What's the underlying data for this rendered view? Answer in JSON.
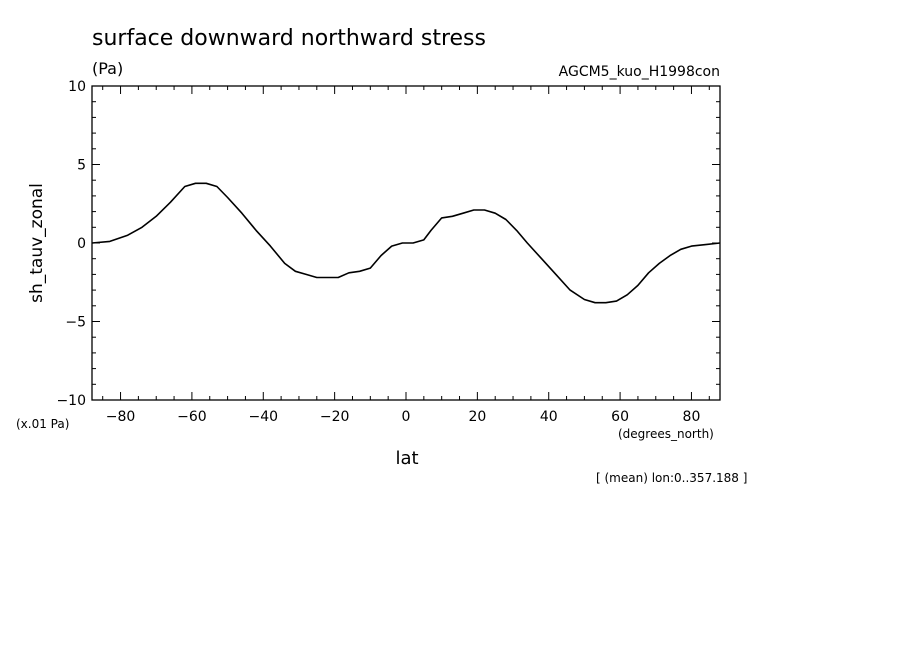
{
  "chart_data": {
    "type": "line",
    "title": "surface downward northward stress",
    "units": "(Pa)",
    "run_label": "AGCM5_kuo_H1998con",
    "ylabel": "sh_tauv_zonal",
    "xlabel": "lat",
    "x_units": "(degrees_north)",
    "y_scale_note": "(x.01 Pa)",
    "footnote": "[ (mean) lon:0..357.188 ]",
    "xlim": [
      -88,
      88
    ],
    "ylim": [
      -10,
      10
    ],
    "x_ticks": [
      -80,
      -60,
      -40,
      -20,
      0,
      20,
      40,
      60,
      80
    ],
    "x_tick_labels": [
      "−80",
      "−60",
      "−40",
      "−20",
      "0",
      "20",
      "40",
      "60",
      "80"
    ],
    "y_ticks": [
      -10,
      -5,
      0,
      5,
      10
    ],
    "y_tick_labels": [
      "−10",
      "−5",
      "0",
      "5",
      "10"
    ],
    "line_color": "#000000",
    "series": [
      {
        "x": [
          -88,
          -83,
          -78,
          -74,
          -70,
          -66,
          -62,
          -59,
          -56,
          -53,
          -50,
          -46,
          -42,
          -38,
          -34,
          -31,
          -28,
          -25,
          -22,
          -19,
          -16,
          -13,
          -10,
          -7,
          -4,
          -1,
          0,
          2,
          5,
          7,
          10,
          13,
          16,
          19,
          22,
          25,
          28,
          31,
          34,
          38,
          42,
          46,
          50,
          53,
          56,
          59,
          62,
          65,
          68,
          71,
          74,
          77,
          80,
          84,
          88
        ],
        "y": [
          0.0,
          0.1,
          0.5,
          1.0,
          1.7,
          2.6,
          3.6,
          3.8,
          3.8,
          3.6,
          2.9,
          1.9,
          0.8,
          -0.2,
          -1.3,
          -1.8,
          -2.0,
          -2.2,
          -2.2,
          -2.2,
          -1.9,
          -1.8,
          -1.6,
          -0.8,
          -0.2,
          0.0,
          0.0,
          0.0,
          0.2,
          0.8,
          1.6,
          1.7,
          1.9,
          2.1,
          2.1,
          1.9,
          1.5,
          0.8,
          0.0,
          -1.0,
          -2.0,
          -3.0,
          -3.6,
          -3.8,
          -3.8,
          -3.7,
          -3.3,
          -2.7,
          -1.9,
          -1.3,
          -0.8,
          -0.4,
          -0.2,
          -0.1,
          0.0
        ]
      }
    ]
  }
}
